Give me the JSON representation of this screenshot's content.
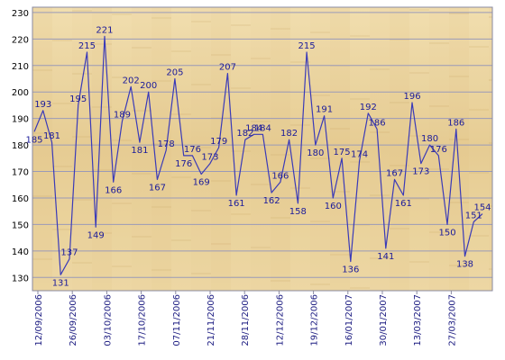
{
  "chart_data": {
    "type": "line",
    "title": "",
    "xlabel": "",
    "ylabel": "",
    "ylim": [
      125,
      232
    ],
    "yticks": [
      130,
      140,
      150,
      160,
      170,
      180,
      190,
      200,
      210,
      220,
      230
    ],
    "grid": true,
    "x_tick_labels": [
      "12/09/2006",
      "26/09/2006",
      "03/10/2006",
      "17/10/2006",
      "07/11/2006",
      "21/11/2006",
      "28/11/2006",
      "12/12/2006",
      "19/12/2006",
      "16/01/2007",
      "30/01/2007",
      "13/03/2007",
      "27/03/2007"
    ],
    "series": [
      {
        "values": [
          185,
          193,
          181,
          131,
          137,
          195,
          215,
          149,
          221,
          166,
          189,
          202,
          181,
          200,
          167,
          178,
          205,
          176,
          176,
          169,
          173,
          179,
          207,
          161,
          182,
          184,
          184,
          162,
          166,
          182,
          158,
          215,
          180,
          191,
          160,
          175,
          136,
          174,
          192,
          186,
          141,
          167,
          161,
          196,
          173,
          180,
          176,
          150,
          186,
          138,
          151,
          154
        ],
        "labels": [
          "185",
          "193",
          "181",
          "131",
          "137",
          "195",
          "215",
          "149",
          "221",
          "166",
          "189",
          "202",
          "181",
          "200",
          "167",
          "178",
          "205",
          "176",
          "176",
          "169",
          "173",
          "179",
          "207",
          "161",
          "182",
          "184",
          "184",
          "162",
          "166",
          "182",
          "158",
          "215",
          "180",
          "191",
          "160",
          "175",
          "136",
          "174",
          "192",
          "186",
          "141",
          "167",
          "161",
          "196",
          "173",
          "180",
          "176",
          "150",
          "186",
          "138",
          "151",
          "154"
        ]
      }
    ],
    "colors": {
      "line": "#3a3ab8",
      "label": "#1a1a9a",
      "background_light": "#f2deae",
      "background_dark": "#d9bb80",
      "grid": "#9a9ab8",
      "frame": "#8a8aa0"
    }
  }
}
